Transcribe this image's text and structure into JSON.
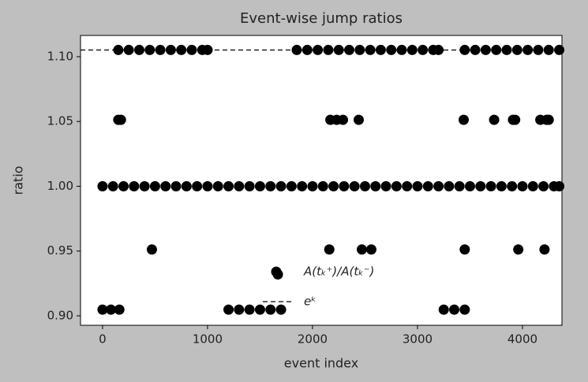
{
  "chart_data": {
    "type": "scatter",
    "title": "Event-wise jump ratios",
    "xlabel": "event index",
    "ylabel": "ratio",
    "xlim": [
      -210,
      4376
    ],
    "ylim": [
      0.8927,
      1.1164
    ],
    "xticks": [
      0,
      1000,
      2000,
      3000,
      4000
    ],
    "yticks": [
      {
        "value": 0.9,
        "label": "0.90"
      },
      0.95,
      {
        "value": 1.0,
        "label": "1.00"
      },
      1.05,
      {
        "value": 1.1,
        "label": "1.10"
      }
    ],
    "series": [
      {
        "name": "A(tₖ⁺)/A(tₖ⁻)",
        "color": "#000000",
        "x": [
          150,
          250,
          350,
          450,
          550,
          650,
          750,
          850,
          950,
          1000,
          1850,
          1950,
          2050,
          2150,
          2250,
          2350,
          2450,
          2550,
          2650,
          2750,
          2850,
          2950,
          3050,
          3150,
          3200,
          3450,
          3550,
          3650,
          3750,
          3850,
          3950,
          4050,
          4150,
          4250,
          4350,
          0,
          100,
          200,
          300,
          400,
          500,
          600,
          700,
          800,
          900,
          1000,
          1100,
          1200,
          1300,
          1400,
          1500,
          1600,
          1700,
          1800,
          1900,
          2000,
          2100,
          2200,
          2300,
          2400,
          2500,
          2600,
          2700,
          2800,
          2900,
          3000,
          3100,
          3200,
          3300,
          3400,
          3500,
          3600,
          3700,
          3800,
          3900,
          4000,
          4100,
          4200,
          4300,
          4350,
          0,
          80,
          160,
          1200,
          1300,
          1400,
          1500,
          1600,
          1700,
          3250,
          3350,
          3450,
          150,
          175,
          2170,
          2230,
          2290,
          2440,
          3440,
          3730,
          3910,
          3930,
          4170,
          4230,
          4250,
          470,
          2160,
          2470,
          2560,
          3450,
          3960,
          4210,
          1670
        ],
        "y": [
          1.1052,
          1.1052,
          1.1052,
          1.1052,
          1.1052,
          1.1052,
          1.1052,
          1.1052,
          1.1052,
          1.1052,
          1.1052,
          1.1052,
          1.1052,
          1.1052,
          1.1052,
          1.1052,
          1.1052,
          1.1052,
          1.1052,
          1.1052,
          1.1052,
          1.1052,
          1.1052,
          1.1052,
          1.1052,
          1.1052,
          1.1052,
          1.1052,
          1.1052,
          1.1052,
          1.1052,
          1.1052,
          1.1052,
          1.1052,
          1.1052,
          1.0,
          1.0,
          1.0,
          1.0,
          1.0,
          1.0,
          1.0,
          1.0,
          1.0,
          1.0,
          1.0,
          1.0,
          1.0,
          1.0,
          1.0,
          1.0,
          1.0,
          1.0,
          1.0,
          1.0,
          1.0,
          1.0,
          1.0,
          1.0,
          1.0,
          1.0,
          1.0,
          1.0,
          1.0,
          1.0,
          1.0,
          1.0,
          1.0,
          1.0,
          1.0,
          1.0,
          1.0,
          1.0,
          1.0,
          1.0,
          1.0,
          1.0,
          1.0,
          1.0,
          1.0,
          0.9048,
          0.9048,
          0.9048,
          0.9048,
          0.9048,
          0.9048,
          0.9048,
          0.9048,
          0.9048,
          0.9048,
          0.9048,
          0.9048,
          1.0513,
          1.0513,
          1.0513,
          1.0513,
          1.0513,
          1.0513,
          1.0513,
          1.0513,
          1.0513,
          1.0513,
          1.0513,
          1.0513,
          1.0513,
          0.9512,
          0.9512,
          0.9512,
          0.9512,
          0.9512,
          0.9512,
          0.9512,
          0.932
        ]
      }
    ],
    "hlines": [
      {
        "name": "eᵏ",
        "value": 1.10517,
        "color": "#000000",
        "style": "dashed"
      }
    ]
  }
}
